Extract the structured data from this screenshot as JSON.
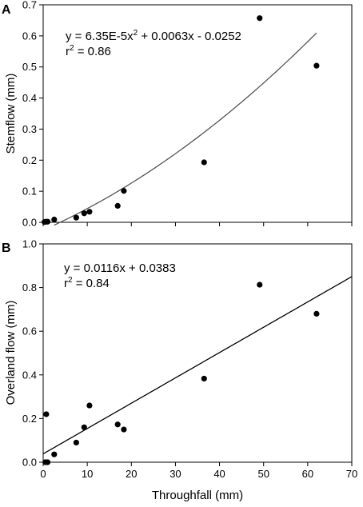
{
  "chart_data": [
    {
      "type": "scatter",
      "panel_label": "A",
      "xlabel": "",
      "ylabel": "Stemflow (mm)",
      "xlim": [
        0,
        70
      ],
      "ylim": [
        0,
        0.7
      ],
      "x_ticks": [],
      "y_ticks": [
        "0.0",
        "0.1",
        "0.2",
        "0.3",
        "0.4",
        "0.5",
        "0.6",
        "0.7"
      ],
      "points": [
        {
          "x": 0.3,
          "y": 0.001
        },
        {
          "x": 0.6,
          "y": 0.002
        },
        {
          "x": 1.0,
          "y": 0.002
        },
        {
          "x": 2.5,
          "y": 0.009
        },
        {
          "x": 7.5,
          "y": 0.015
        },
        {
          "x": 9.3,
          "y": 0.029
        },
        {
          "x": 10.5,
          "y": 0.034
        },
        {
          "x": 16.9,
          "y": 0.053
        },
        {
          "x": 18.3,
          "y": 0.101
        },
        {
          "x": 36.5,
          "y": 0.193
        },
        {
          "x": 49.1,
          "y": 0.657
        },
        {
          "x": 62.0,
          "y": 0.504
        }
      ],
      "fit": {
        "kind": "quadratic",
        "a": 6.35e-05,
        "b": 0.0063,
        "c": -0.0252,
        "x_range": [
          2.5,
          62
        ]
      },
      "equation_main": "y = 6.35E-5x",
      "equation_sup": "2",
      "equation_rest": " + 0.0063x - 0.0252",
      "r2_main": "r",
      "r2_sup": "2",
      "r2_rest": " = 0.86"
    },
    {
      "type": "scatter",
      "panel_label": "B",
      "xlabel": "Throughfall (mm)",
      "ylabel": "Overland flow (mm)",
      "xlim": [
        0,
        70
      ],
      "ylim": [
        0,
        1.0
      ],
      "x_ticks": [
        "0",
        "10",
        "20",
        "30",
        "40",
        "50",
        "60",
        "70"
      ],
      "y_ticks": [
        "0.0",
        "0.2",
        "0.4",
        "0.6",
        "0.8",
        "1.0"
      ],
      "points": [
        {
          "x": 0.5,
          "y": 0.0
        },
        {
          "x": 1.0,
          "y": 0.0
        },
        {
          "x": 0.7,
          "y": 0.22
        },
        {
          "x": 2.5,
          "y": 0.036
        },
        {
          "x": 7.5,
          "y": 0.09
        },
        {
          "x": 9.3,
          "y": 0.16
        },
        {
          "x": 10.5,
          "y": 0.26
        },
        {
          "x": 16.9,
          "y": 0.173
        },
        {
          "x": 18.3,
          "y": 0.15
        },
        {
          "x": 36.5,
          "y": 0.383
        },
        {
          "x": 49.1,
          "y": 0.813
        },
        {
          "x": 62.0,
          "y": 0.68
        }
      ],
      "fit": {
        "kind": "linear",
        "a": 0,
        "b": 0.0116,
        "c": 0.0383,
        "x_range": [
          0,
          70
        ]
      },
      "equation_main": "y = 0.0116x + 0.0383",
      "equation_sup": "",
      "equation_rest": "",
      "r2_main": "r",
      "r2_sup": "2",
      "r2_rest": " = 0.84"
    }
  ]
}
